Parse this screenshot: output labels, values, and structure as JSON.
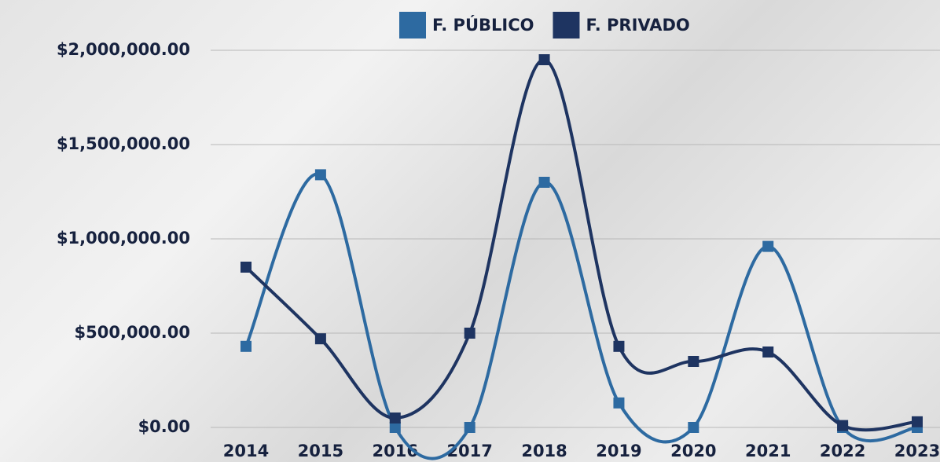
{
  "chart_data": {
    "type": "line",
    "categories": [
      "2014",
      "2015",
      "2016",
      "2017",
      "2018",
      "2019",
      "2020",
      "2021",
      "2022",
      "2023"
    ],
    "series": [
      {
        "name": "F. PÚBLICO",
        "color": "#2d6aa1",
        "values": [
          430000,
          1340000,
          0,
          0,
          1300000,
          130000,
          0,
          960000,
          0,
          0
        ]
      },
      {
        "name": "F. PRIVADO",
        "color": "#1e3461",
        "values": [
          850000,
          470000,
          50000,
          500000,
          1950000,
          430000,
          350000,
          400000,
          10000,
          30000
        ]
      }
    ],
    "ylim": [
      0,
      2000000
    ],
    "yticks": [
      {
        "value": 0,
        "label": "$0.00"
      },
      {
        "value": 500000,
        "label": "$500,000.00"
      },
      {
        "value": 1000000,
        "label": "$1,000,000.00"
      },
      {
        "value": 1500000,
        "label": "$1,500,000.00"
      },
      {
        "value": 2000000,
        "label": "$2,000,000.00"
      }
    ],
    "grid": true,
    "smooth": true,
    "legend": "top"
  }
}
